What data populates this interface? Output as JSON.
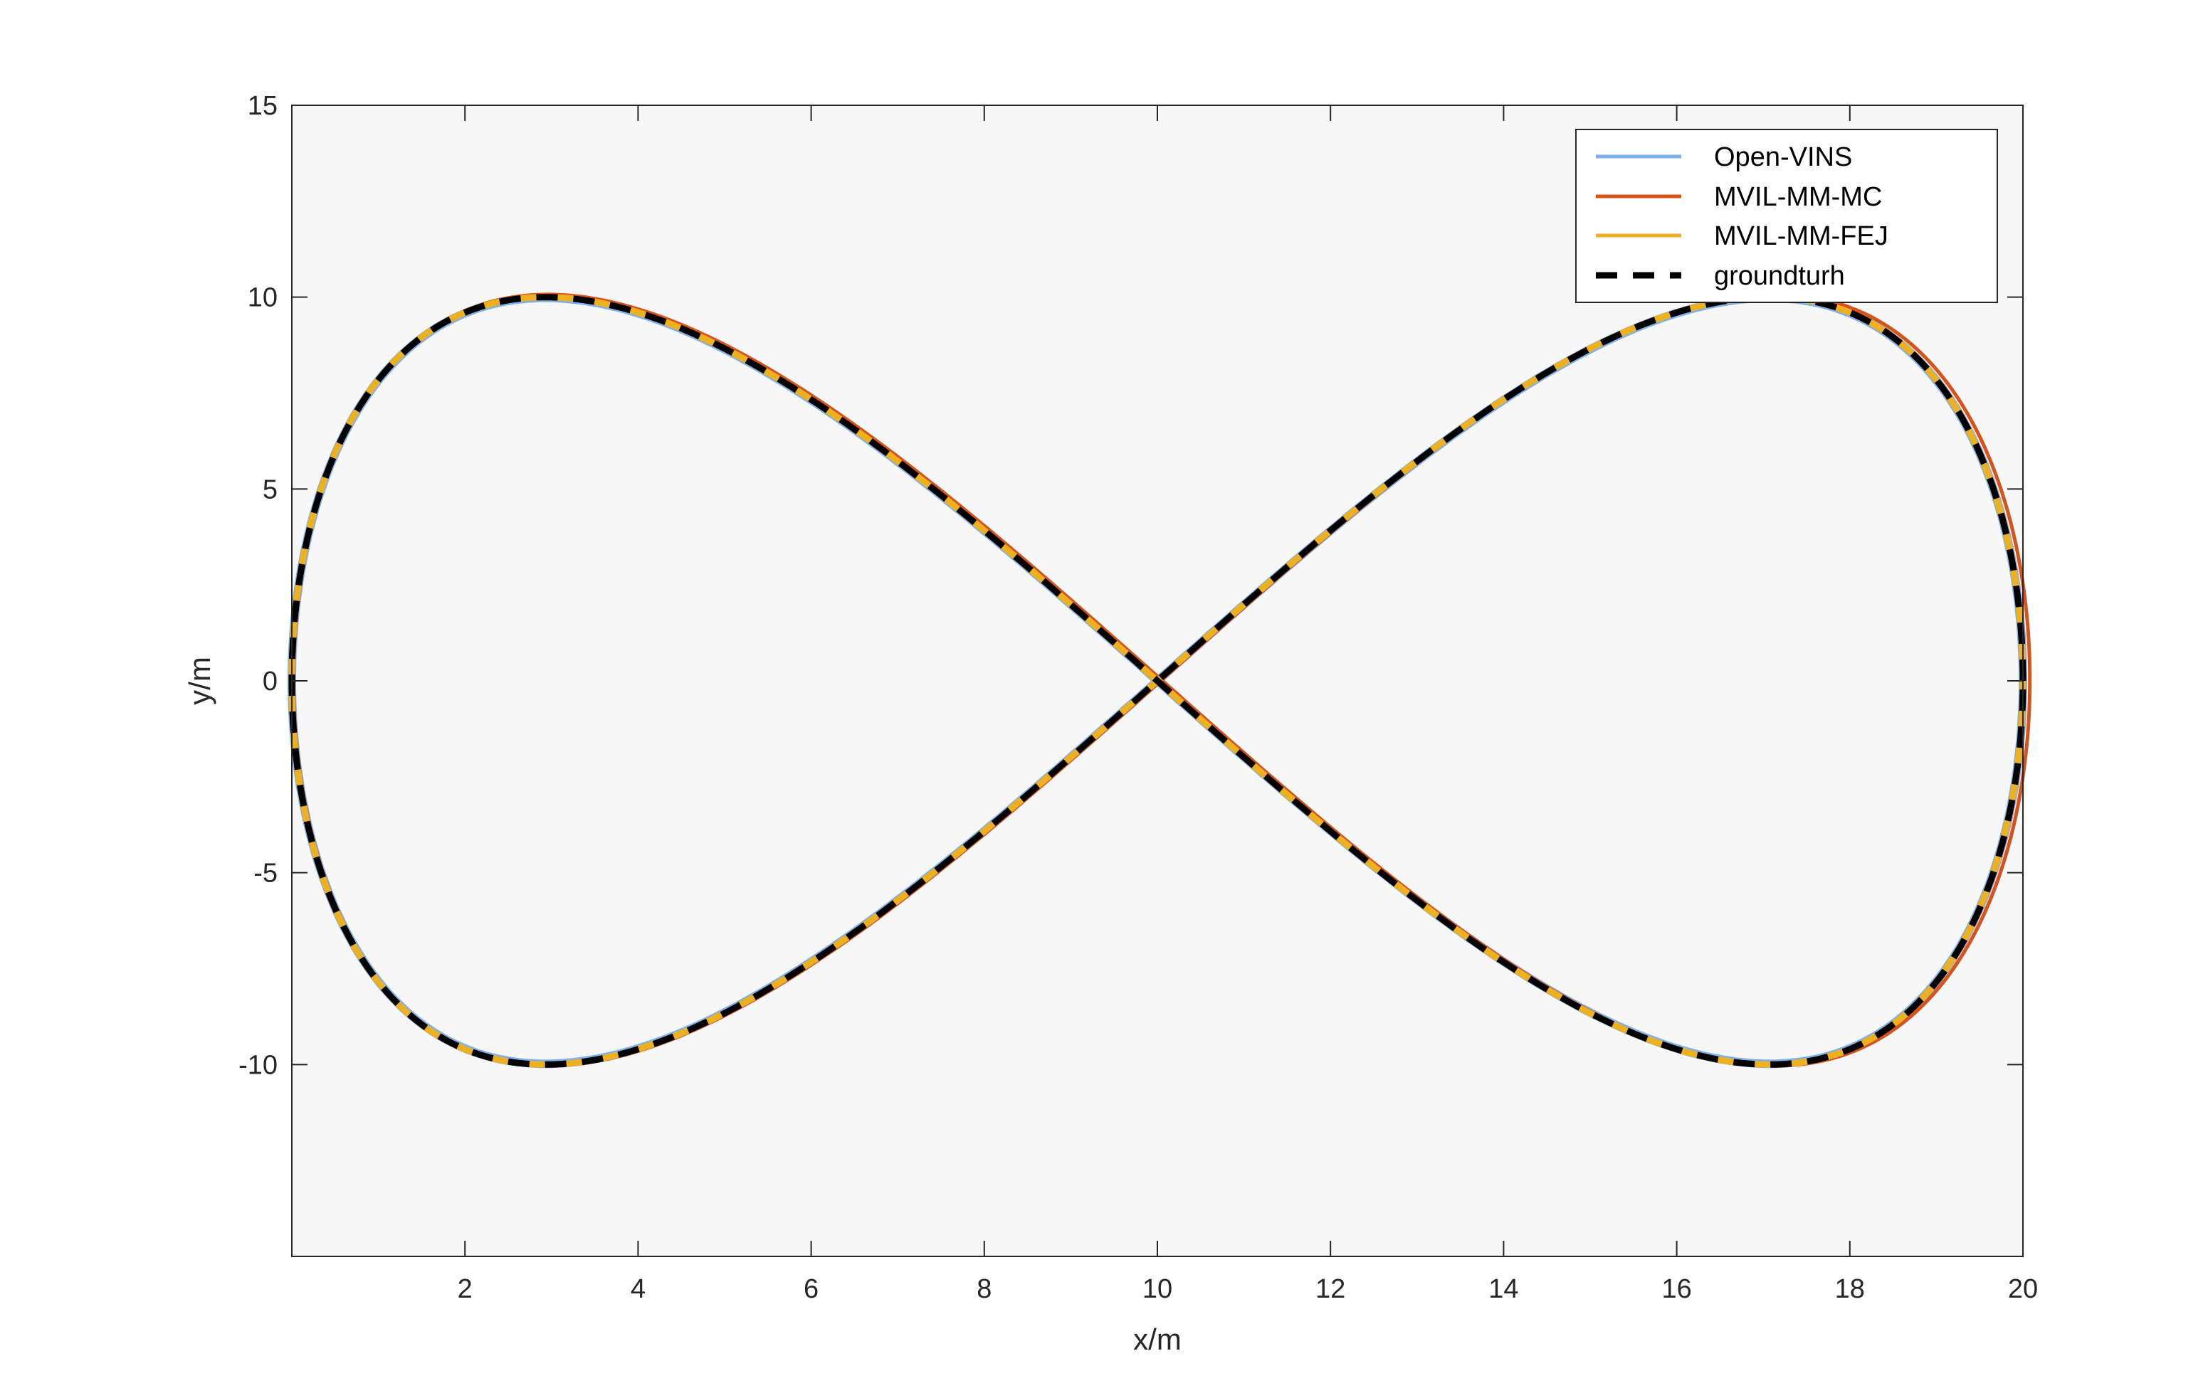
{
  "chart_data": {
    "type": "line",
    "title": "",
    "xlabel": "x/m",
    "ylabel": "y/m",
    "xlim": [
      0,
      20
    ],
    "ylim": [
      -15,
      15
    ],
    "xticks": [
      2,
      4,
      6,
      8,
      10,
      12,
      14,
      16,
      18,
      20
    ],
    "yticks": [
      15,
      10,
      5,
      0,
      -5,
      -10
    ],
    "grid": false,
    "legend_position": "top-right",
    "colors": {
      "axes_background": "#f7f7f7",
      "axes_edge": "#262626"
    },
    "series": [
      {
        "name": "Open-VINS",
        "color": "#7fb0ee",
        "style": "solid",
        "shape": "figure-eight",
        "center": [
          10.0,
          0.0
        ],
        "half_width": 10.0,
        "half_height": 9.98,
        "y_extent": [
          -10.15,
          9.9
        ],
        "x_extent": [
          -0.05,
          19.95
        ]
      },
      {
        "name": "MVIL-MM-MC",
        "color": "#d95319",
        "style": "solid",
        "shape": "figure-eight",
        "center": [
          10.05,
          0.02
        ],
        "half_width": 10.03,
        "half_height": 10.05,
        "y_extent": [
          -10.1,
          10.25
        ],
        "x_extent": [
          0.0,
          20.05
        ]
      },
      {
        "name": "MVIL-MM-FEJ",
        "color": "#edb120",
        "style": "solid",
        "shape": "figure-eight",
        "center": [
          10.0,
          0.0
        ],
        "half_width": 10.0,
        "half_height": 10.0,
        "y_extent": [
          -10.0,
          10.0
        ],
        "x_extent": [
          0.0,
          20.0
        ]
      },
      {
        "name": "groundturh",
        "color": "#000000",
        "style": "dashed",
        "shape": "figure-eight",
        "center": [
          10.0,
          0.0
        ],
        "half_width": 10.0,
        "half_height": 10.0,
        "y_extent": [
          -10.0,
          10.0
        ],
        "x_extent": [
          0.0,
          20.0
        ]
      }
    ]
  }
}
